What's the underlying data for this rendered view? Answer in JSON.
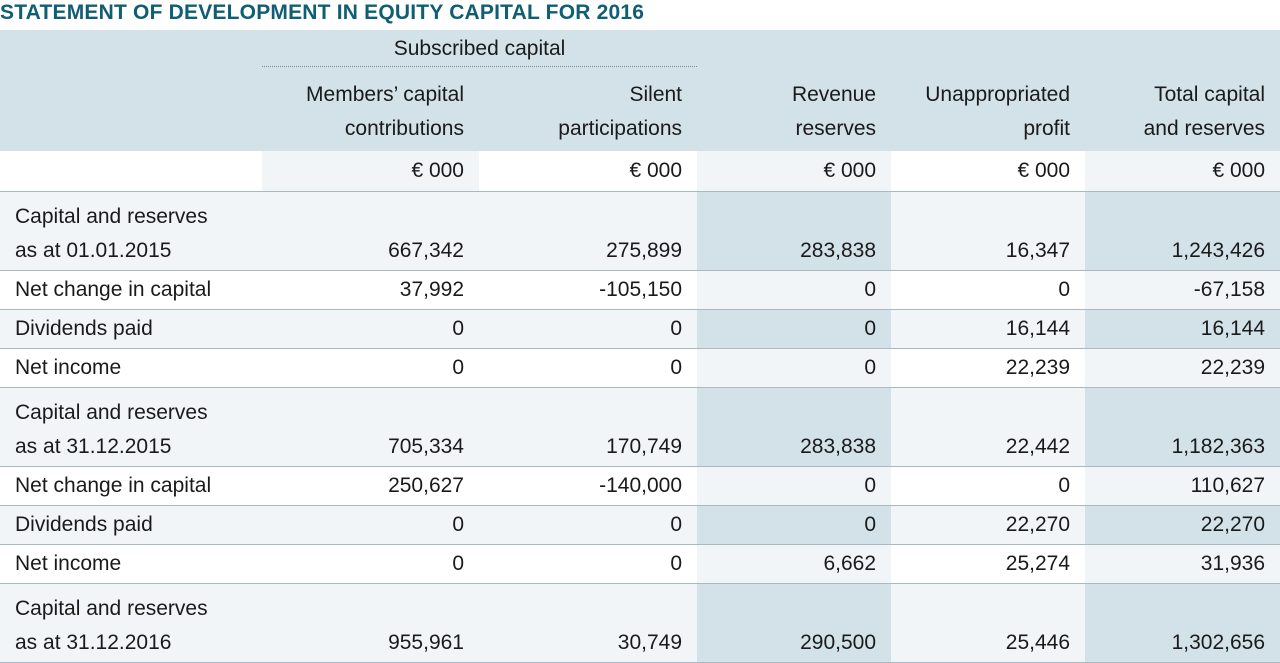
{
  "title": "STATEMENT OF DEVELOPMENT IN EQUITY CAPITAL FOR 2016",
  "header": {
    "subscribed_capital": "Subscribed capital",
    "columns": [
      {
        "line1": "Members’ capital",
        "line2": "contributions"
      },
      {
        "line1": "Silent",
        "line2": "participations"
      },
      {
        "line1": "Revenue",
        "line2": "reserves"
      },
      {
        "line1": "Unappropriated",
        "line2": "profit"
      },
      {
        "line1": "Total capital",
        "line2": "and reserves"
      }
    ],
    "unit": "€ 000"
  },
  "rows": [
    {
      "label1": "Capital and reserves",
      "label2": "as at 01.01.2015",
      "values": [
        "667,342",
        "275,899",
        "283,838",
        "16,347",
        "1,243,426"
      ]
    },
    {
      "label1": "Net change in capital",
      "values": [
        "37,992",
        "-105,150",
        "0",
        "0",
        "-67,158"
      ]
    },
    {
      "label1": "Dividends paid",
      "values": [
        "0",
        "0",
        "0",
        "16,144",
        "16,144"
      ]
    },
    {
      "label1": "Net income",
      "values": [
        "0",
        "0",
        "0",
        "22,239",
        "22,239"
      ]
    },
    {
      "label1": "Capital and reserves",
      "label2": "as at 31.12.2015",
      "values": [
        "705,334",
        "170,749",
        "283,838",
        "22,442",
        "1,182,363"
      ]
    },
    {
      "label1": "Net change in capital",
      "values": [
        "250,627",
        "-140,000",
        "0",
        "0",
        "110,627"
      ]
    },
    {
      "label1": "Dividends paid",
      "values": [
        "0",
        "0",
        "0",
        "22,270",
        "22,270"
      ]
    },
    {
      "label1": "Net income",
      "values": [
        "0",
        "0",
        "6,662",
        "25,274",
        "31,936"
      ]
    },
    {
      "label1": "Capital and reserves",
      "label2": "as at 31.12.2016",
      "values": [
        "955,961",
        "30,749",
        "290,500",
        "25,446",
        "1,302,656"
      ]
    }
  ]
}
